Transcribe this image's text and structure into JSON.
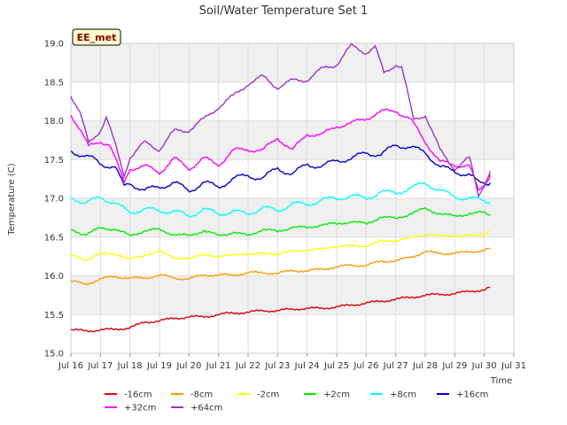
{
  "chart_data": {
    "type": "line",
    "title": "Soil/Water Temperature Set 1",
    "xlabel": "Time",
    "ylabel": "Temperature (C)",
    "badge": "EE_met",
    "xlim": [
      16,
      31
    ],
    "ylim": [
      15.0,
      19.0
    ],
    "x_ticks": [
      16,
      17,
      18,
      19,
      20,
      21,
      22,
      23,
      24,
      25,
      26,
      27,
      28,
      29,
      30,
      31
    ],
    "x_tick_labels": [
      "Jul 16",
      "Jul 17",
      "Jul 18",
      "Jul 19",
      "Jul 20",
      "Jul 21",
      "Jul 22",
      "Jul 23",
      "Jul 24",
      "Jul 25",
      "Jul 26",
      "Jul 27",
      "Jul 28",
      "Jul 29",
      "Jul 30",
      "Jul 31"
    ],
    "y_ticks": [
      15.0,
      15.5,
      16.0,
      16.5,
      17.0,
      17.5,
      18.0,
      18.5,
      19.0
    ],
    "y_tick_labels": [
      "15.0",
      "15.5",
      "16.0",
      "16.5",
      "17.0",
      "17.5",
      "18.0",
      "18.5",
      "19.0"
    ],
    "grid": true,
    "legend_position": "bottom",
    "series": [
      {
        "name": "-16cm",
        "color": "#dd0000",
        "x": [
          16,
          16.5,
          17,
          17.5,
          18,
          18.5,
          19,
          19.5,
          20,
          20.5,
          21,
          21.5,
          22,
          22.5,
          23,
          23.5,
          24,
          24.5,
          25,
          25.5,
          26,
          26.5,
          27,
          27.5,
          28,
          28.5,
          29,
          29.5,
          30,
          30.2
        ],
        "y": [
          15.3,
          15.29,
          15.3,
          15.31,
          15.33,
          15.4,
          15.42,
          15.45,
          15.47,
          15.47,
          15.5,
          15.52,
          15.53,
          15.55,
          15.55,
          15.57,
          15.58,
          15.58,
          15.6,
          15.62,
          15.65,
          15.67,
          15.7,
          15.72,
          15.75,
          15.76,
          15.77,
          15.8,
          15.82,
          15.85
        ]
      },
      {
        "name": "-8cm",
        "color": "#ff9900",
        "x": [
          16,
          16.5,
          17,
          17.5,
          18,
          18.5,
          19,
          19.5,
          20,
          20.5,
          21,
          21.5,
          22,
          22.5,
          23,
          23.5,
          24,
          24.5,
          25,
          25.5,
          26,
          26.5,
          27,
          27.5,
          28,
          28.5,
          29,
          29.5,
          30,
          30.2
        ],
        "y": [
          15.92,
          15.9,
          15.95,
          16.0,
          15.96,
          15.98,
          16.0,
          15.98,
          15.95,
          16.02,
          16.0,
          16.02,
          16.03,
          16.05,
          16.02,
          16.08,
          16.05,
          16.1,
          16.1,
          16.15,
          16.12,
          16.2,
          16.18,
          16.25,
          16.3,
          16.3,
          16.28,
          16.32,
          16.32,
          16.35
        ]
      },
      {
        "name": "-2cm",
        "color": "#ffff00",
        "x": [
          16,
          16.5,
          17,
          17.5,
          18,
          18.5,
          19,
          19.5,
          20,
          20.5,
          21,
          21.5,
          22,
          22.5,
          23,
          23.5,
          24,
          24.5,
          25,
          25.5,
          26,
          26.5,
          27,
          27.5,
          28,
          28.5,
          29,
          29.5,
          30,
          30.2
        ],
        "y": [
          16.25,
          16.22,
          16.27,
          16.3,
          16.2,
          16.28,
          16.3,
          16.25,
          16.2,
          16.3,
          16.22,
          16.3,
          16.25,
          16.32,
          16.25,
          16.35,
          16.3,
          16.38,
          16.35,
          16.42,
          16.35,
          16.48,
          16.42,
          16.52,
          16.5,
          16.55,
          16.48,
          16.55,
          16.5,
          16.58
        ]
      },
      {
        "name": "+2cm",
        "color": "#00ee00",
        "x": [
          16,
          16.5,
          17,
          17.5,
          18,
          18.5,
          19,
          19.5,
          20,
          20.5,
          21,
          21.5,
          22,
          22.5,
          23,
          23.5,
          24,
          24.5,
          25,
          25.5,
          26,
          26.5,
          27,
          27.5,
          28,
          28.5,
          29,
          29.5,
          30,
          30.2
        ],
        "y": [
          16.58,
          16.55,
          16.6,
          16.62,
          16.5,
          16.6,
          16.58,
          16.55,
          16.5,
          16.6,
          16.5,
          16.58,
          16.5,
          16.62,
          16.55,
          16.65,
          16.6,
          16.68,
          16.65,
          16.72,
          16.65,
          16.78,
          16.72,
          16.82,
          16.85,
          16.82,
          16.75,
          16.82,
          16.8,
          16.78
        ]
      },
      {
        "name": "+8cm",
        "color": "#00ffff",
        "x": [
          16,
          16.5,
          17,
          17.5,
          18,
          18.5,
          19,
          19.5,
          20,
          20.5,
          21,
          21.5,
          22,
          22.5,
          23,
          23.5,
          24,
          24.5,
          25,
          25.5,
          26,
          26.5,
          27,
          27.5,
          28,
          28.5,
          29,
          29.5,
          30,
          30.2
        ],
        "y": [
          17.0,
          16.95,
          17.0,
          16.95,
          16.8,
          16.88,
          16.82,
          16.85,
          16.75,
          16.88,
          16.78,
          16.85,
          16.78,
          16.9,
          16.82,
          16.95,
          16.9,
          17.0,
          16.98,
          17.05,
          16.98,
          17.1,
          17.05,
          17.15,
          17.18,
          17.12,
          17.0,
          17.02,
          16.95,
          16.95
        ]
      },
      {
        "name": "+16cm",
        "color": "#0000cc",
        "x": [
          16,
          16.4,
          16.8,
          17,
          17.5,
          17.8,
          18,
          18.5,
          19,
          19.5,
          20,
          20.5,
          21,
          21.5,
          22,
          22.5,
          23,
          23.5,
          24,
          24.5,
          25,
          25.5,
          26,
          26.5,
          27,
          27.5,
          28,
          28.5,
          29,
          29.5,
          29.8,
          30.2
        ],
        "y": [
          17.62,
          17.55,
          17.5,
          17.45,
          17.4,
          17.15,
          17.2,
          17.1,
          17.15,
          17.2,
          17.1,
          17.2,
          17.15,
          17.25,
          17.3,
          17.25,
          17.4,
          17.3,
          17.45,
          17.4,
          17.5,
          17.5,
          17.6,
          17.55,
          17.7,
          17.65,
          17.6,
          17.4,
          17.35,
          17.3,
          17.2,
          17.2
        ]
      },
      {
        "name": "+32cm",
        "color": "#ff00ff",
        "x": [
          16,
          16.3,
          16.6,
          17,
          17.3,
          17.8,
          18,
          18.5,
          19,
          19.5,
          20,
          20.5,
          21,
          21.5,
          22,
          22.5,
          23,
          23.5,
          24,
          24.5,
          25,
          25.5,
          26,
          26.5,
          27,
          27.5,
          28,
          28.5,
          29,
          29.5,
          29.8,
          30.2
        ],
        "y": [
          18.1,
          17.9,
          17.65,
          17.75,
          17.7,
          17.2,
          17.4,
          17.4,
          17.35,
          17.5,
          17.4,
          17.5,
          17.45,
          17.6,
          17.65,
          17.6,
          17.8,
          17.6,
          17.85,
          17.8,
          17.95,
          17.95,
          18.05,
          18.1,
          18.15,
          18.0,
          17.75,
          17.45,
          17.45,
          17.4,
          17.1,
          17.3
        ]
      },
      {
        "name": "+64cm",
        "color": "#9933cc",
        "x": [
          16,
          16.3,
          16.6,
          17,
          17.2,
          17.8,
          18,
          18.5,
          19,
          19.5,
          20,
          20.5,
          21,
          21.5,
          22,
          22.5,
          23,
          23.5,
          24,
          24.5,
          25,
          25.5,
          26,
          26.3,
          26.6,
          27,
          27.2,
          27.6,
          28,
          28.5,
          29,
          29.5,
          29.8,
          30.2
        ],
        "y": [
          18.35,
          18.1,
          17.7,
          17.9,
          18.05,
          17.3,
          17.55,
          17.7,
          17.65,
          17.85,
          17.9,
          18.0,
          18.2,
          18.3,
          18.5,
          18.55,
          18.45,
          18.5,
          18.55,
          18.65,
          18.75,
          18.95,
          18.9,
          18.95,
          18.6,
          18.75,
          18.7,
          18.0,
          18.1,
          17.6,
          17.4,
          17.5,
          17.05,
          17.35
        ]
      }
    ]
  }
}
